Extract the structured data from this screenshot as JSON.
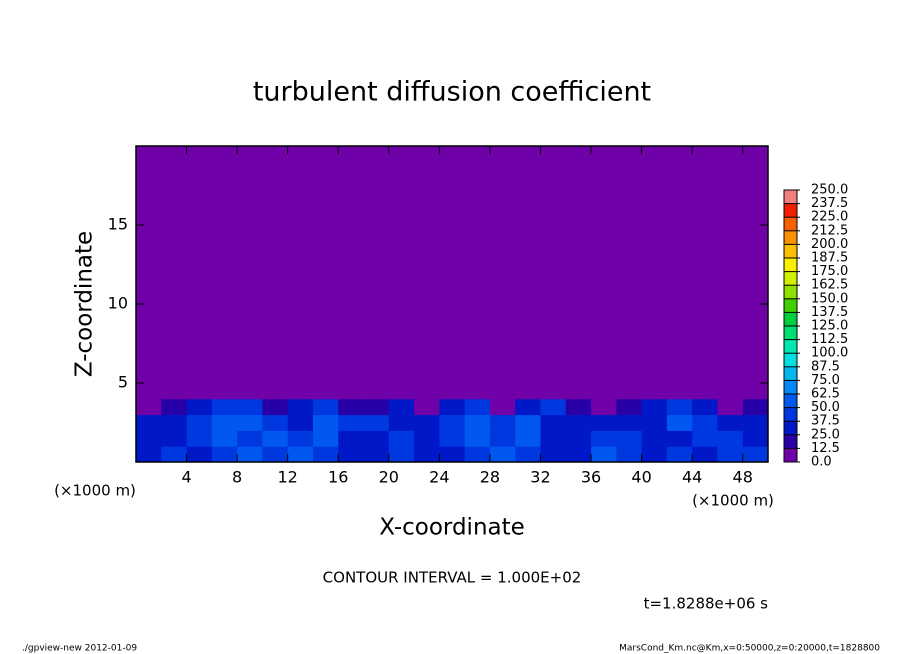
{
  "chart_data": {
    "type": "heatmap",
    "title": "turbulent diffusion coefficient",
    "xlabel": "X-coordinate",
    "ylabel": "Z-coordinate",
    "xunit": "(×1000 m)",
    "xlim": [
      0,
      50
    ],
    "ylim": [
      0,
      20
    ],
    "xticks": [
      4,
      8,
      12,
      16,
      20,
      24,
      28,
      32,
      36,
      40,
      44,
      48
    ],
    "yticks": [
      5,
      10,
      15
    ],
    "xbins": [
      0,
      2,
      4,
      6,
      8,
      10,
      12,
      14,
      16,
      18,
      20,
      22,
      24,
      26,
      28,
      30,
      32,
      34,
      36,
      38,
      40,
      42,
      44,
      46,
      48,
      50
    ],
    "ybins": [
      0,
      1,
      2,
      3,
      4,
      5,
      20
    ],
    "z": [
      [
        35,
        40,
        30,
        45,
        50,
        40,
        60,
        45,
        35,
        30,
        40,
        35,
        30,
        45,
        55,
        40,
        35,
        30,
        50,
        45,
        35,
        40,
        30,
        45,
        40
      ],
      [
        30,
        35,
        40,
        50,
        45,
        55,
        40,
        50,
        30,
        35,
        45,
        30,
        40,
        50,
        45,
        55,
        30,
        35,
        40,
        45,
        30,
        35,
        45,
        40,
        35
      ],
      [
        25,
        30,
        45,
        55,
        50,
        45,
        35,
        55,
        45,
        40,
        35,
        30,
        45,
        55,
        40,
        50,
        35,
        30,
        25,
        30,
        35,
        50,
        45,
        30,
        30
      ],
      [
        10,
        15,
        30,
        45,
        40,
        15,
        30,
        45,
        20,
        15,
        25,
        10,
        35,
        40,
        10,
        35,
        40,
        15,
        10,
        20,
        30,
        40,
        25,
        10,
        15
      ],
      [
        0,
        0,
        5,
        0,
        0,
        0,
        0,
        0,
        0,
        0,
        0,
        0,
        0,
        0,
        0,
        0,
        0,
        0,
        0,
        0,
        0,
        0,
        0,
        0,
        0
      ],
      [
        0,
        0,
        0,
        0,
        0,
        0,
        0,
        0,
        0,
        0,
        0,
        0,
        0,
        0,
        0,
        0,
        0,
        0,
        0,
        0,
        0,
        0,
        0,
        0,
        0
      ]
    ],
    "levels": [
      {
        "value": 0,
        "label": "0.0"
      },
      {
        "value": 12.5,
        "label": "12.5"
      },
      {
        "value": 25,
        "label": "25.0"
      },
      {
        "value": 37.5,
        "label": "37.5"
      },
      {
        "value": 50,
        "label": "50.0"
      },
      {
        "value": 62.5,
        "label": "62.5"
      },
      {
        "value": 75,
        "label": "75.0"
      },
      {
        "value": 87.5,
        "label": "87.5"
      },
      {
        "value": 100,
        "label": "100.0"
      },
      {
        "value": 112.5,
        "label": "112.5"
      },
      {
        "value": 125,
        "label": "125.0"
      },
      {
        "value": 137.5,
        "label": "137.5"
      },
      {
        "value": 150,
        "label": "150.0"
      },
      {
        "value": 162.5,
        "label": "162.5"
      },
      {
        "value": 175,
        "label": "175.0"
      },
      {
        "value": 187.5,
        "label": "187.5"
      },
      {
        "value": 200,
        "label": "200.0"
      },
      {
        "value": 212.5,
        "label": "212.5"
      },
      {
        "value": 225,
        "label": "225.0"
      },
      {
        "value": 237.5,
        "label": "237.5"
      },
      {
        "value": 250,
        "label": "250.0"
      }
    ],
    "colors": [
      "#7000a8",
      "#2800a8",
      "#0018c8",
      "#0038e0",
      "#0058f0",
      "#0088f8",
      "#00b8f0",
      "#00e0e0",
      "#00e8b0",
      "#00e070",
      "#00d040",
      "#40d000",
      "#90e000",
      "#d0f000",
      "#f8f000",
      "#f8c000",
      "#f89000",
      "#f86000",
      "#f02000",
      "#f08080"
    ],
    "contour_note": "CONTOUR INTERVAL = 1.000E+02",
    "time_note": "t=1.8288e+06 s",
    "footer_left": "./gpview-new   2012-01-09",
    "footer_right": "MarsCond_Km.nc@Km,x=0:50000,z=0:20000,t=1828800"
  }
}
